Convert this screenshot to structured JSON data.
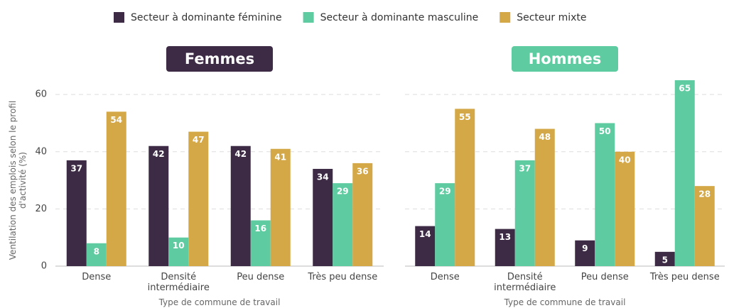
{
  "chart_data": [
    {
      "type": "bar",
      "title": "Femmes",
      "title_color": "#3d2b45",
      "ylabel": "Ventilation des emplois selon le profil d'activité (%)",
      "xlabel": "Type de commune de travail",
      "categories": [
        "Dense",
        "Densité intermédiaire",
        "Peu dense",
        "Très peu dense"
      ],
      "series": [
        {
          "name": "Secteur à dominante féminine",
          "color": "#3d2b45",
          "values": [
            37,
            42,
            42,
            34
          ]
        },
        {
          "name": "Secteur à dominante masculine",
          "color": "#5ecba1",
          "values": [
            8,
            10,
            16,
            29
          ]
        },
        {
          "name": "Secteur mixte",
          "color": "#d4a847",
          "values": [
            54,
            47,
            41,
            36
          ]
        }
      ],
      "ylim": [
        0,
        66
      ],
      "yticks": [
        0,
        20,
        40,
        60
      ],
      "grid": true
    },
    {
      "type": "bar",
      "title": "Hommes",
      "title_color": "#5ecba1",
      "xlabel": "Type de commune de travail",
      "categories": [
        "Dense",
        "Densité intermédiaire",
        "Peu dense",
        "Très peu dense"
      ],
      "series": [
        {
          "color": "#3d2b45",
          "values": [
            14,
            13,
            9,
            5
          ]
        },
        {
          "color": "#5ecba1",
          "values": [
            29,
            37,
            50,
            65
          ]
        },
        {
          "color": "#d4a847",
          "values": [
            55,
            48,
            40,
            28
          ]
        }
      ],
      "ylim": [
        0,
        66
      ],
      "yticks": [
        0,
        20,
        40,
        60
      ],
      "grid": true
    }
  ]
}
